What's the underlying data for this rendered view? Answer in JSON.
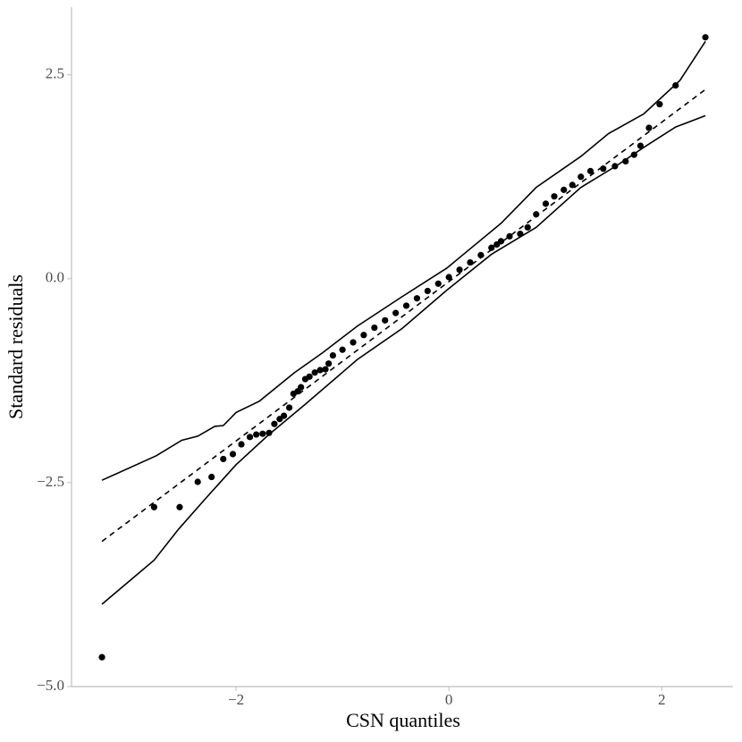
{
  "chart_data": {
    "type": "scatter",
    "x_label": "CSN quantiles",
    "y_label": "Standard residuals",
    "xlim": [
      -3.546,
      2.67
    ],
    "ylim": [
      -5.0,
      3.33
    ],
    "xticks": [
      {
        "value": -2,
        "label": "−2"
      },
      0,
      2
    ],
    "yticks": [
      {
        "value": -5.0,
        "label": "−5.0"
      },
      {
        "value": -2.5,
        "label": "−2.5"
      },
      {
        "value": 0,
        "label": "0.0"
      },
      2.5
    ],
    "color": "#000000",
    "points": {
      "x": [
        -3.26,
        -2.77,
        -2.53,
        -2.36,
        -2.23,
        -2.12,
        -2.03,
        -1.95,
        -1.87,
        -1.81,
        -1.75,
        -1.69,
        -1.64,
        -1.59,
        -1.55,
        -1.5,
        -1.46,
        -1.42,
        -1.39,
        -1.35,
        -1.31,
        -1.26,
        -1.21,
        -1.16,
        -1.13,
        -1.09,
        -1.0,
        -0.9,
        -0.8,
        -0.7,
        -0.6,
        -0.5,
        -0.4,
        -0.3,
        -0.2,
        -0.1,
        0,
        0.1,
        0.2,
        0.3,
        0.4,
        0.45,
        0.49,
        0.57,
        0.67,
        0.74,
        0.82,
        0.91,
        0.99,
        1.08,
        1.16,
        1.24,
        1.33,
        1.45,
        1.56,
        1.66,
        1.74,
        1.8,
        1.88,
        1.98,
        2.13,
        2.41
      ],
      "y": [
        -4.64,
        -2.8,
        -2.8,
        -2.49,
        -2.43,
        -2.21,
        -2.15,
        -2.03,
        -1.94,
        -1.91,
        -1.9,
        -1.89,
        -1.78,
        -1.72,
        -1.68,
        -1.58,
        -1.41,
        -1.38,
        -1.33,
        -1.23,
        -1.2,
        -1.15,
        -1.12,
        -1.11,
        -1.04,
        -0.94,
        -0.87,
        -0.78,
        -0.69,
        -0.6,
        -0.51,
        -0.42,
        -0.33,
        -0.24,
        -0.15,
        -0.06,
        0.02,
        0.11,
        0.2,
        0.29,
        0.38,
        0.42,
        0.46,
        0.52,
        0.55,
        0.63,
        0.79,
        0.92,
        1.01,
        1.09,
        1.15,
        1.25,
        1.32,
        1.35,
        1.38,
        1.44,
        1.52,
        1.63,
        1.85,
        2.14,
        2.37,
        2.96
      ]
    },
    "reference_line": {
      "x": [
        -3.26,
        2.41
      ],
      "y": [
        -3.22,
        2.32
      ]
    },
    "envelope_upper": {
      "x": [
        -3.26,
        -2.75,
        -2.51,
        -2.36,
        -2.2,
        -2.12,
        -2.0,
        -1.78,
        -1.45,
        -1.19,
        -0.86,
        -0.44,
        -0.02,
        0.49,
        0.82,
        1.24,
        1.5,
        1.83,
        2.17,
        2.41
      ],
      "y": [
        -2.47,
        -2.17,
        -1.98,
        -1.93,
        -1.81,
        -1.8,
        -1.64,
        -1.5,
        -1.15,
        -0.91,
        -0.58,
        -0.22,
        0.13,
        0.68,
        1.12,
        1.5,
        1.78,
        2.02,
        2.43,
        2.91
      ]
    },
    "envelope_lower": {
      "x": [
        -3.26,
        -2.77,
        -2.54,
        -2.29,
        -2.0,
        -1.7,
        -1.36,
        -0.86,
        -0.44,
        -0.02,
        0.4,
        0.82,
        1.24,
        1.58,
        1.83,
        2.13,
        2.41
      ],
      "y": [
        -3.99,
        -3.45,
        -3.07,
        -2.7,
        -2.28,
        -1.92,
        -1.55,
        -0.99,
        -0.61,
        -0.14,
        0.3,
        0.63,
        1.12,
        1.39,
        1.61,
        1.86,
        2.0
      ]
    }
  }
}
